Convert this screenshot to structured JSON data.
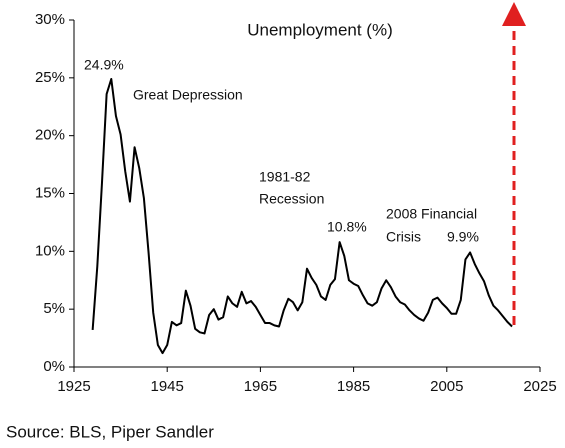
{
  "chart_data": {
    "type": "line",
    "title": "Unemployment (%)",
    "x": [
      1929,
      1930,
      1931,
      1932,
      1933,
      1934,
      1935,
      1936,
      1937,
      1938,
      1939,
      1940,
      1941,
      1942,
      1943,
      1944,
      1945,
      1946,
      1947,
      1948,
      1949,
      1950,
      1951,
      1952,
      1953,
      1954,
      1955,
      1956,
      1957,
      1958,
      1959,
      1960,
      1961,
      1962,
      1963,
      1964,
      1965,
      1966,
      1967,
      1968,
      1969,
      1970,
      1971,
      1972,
      1973,
      1974,
      1975,
      1976,
      1977,
      1978,
      1979,
      1980,
      1981,
      1982,
      1983,
      1984,
      1985,
      1986,
      1987,
      1988,
      1989,
      1990,
      1991,
      1992,
      1993,
      1994,
      1995,
      1996,
      1997,
      1998,
      1999,
      2000,
      2001,
      2002,
      2003,
      2004,
      2005,
      2006,
      2007,
      2008,
      2009,
      2010,
      2011,
      2012,
      2013,
      2014,
      2015,
      2016,
      2017,
      2018,
      2019
    ],
    "values": [
      3.2,
      8.7,
      15.9,
      23.6,
      24.9,
      21.7,
      20.1,
      16.9,
      14.3,
      19.0,
      17.2,
      14.6,
      9.9,
      4.7,
      1.9,
      1.2,
      1.9,
      3.9,
      3.6,
      3.8,
      6.6,
      5.3,
      3.3,
      3.0,
      2.9,
      4.5,
      5.0,
      4.1,
      4.3,
      6.1,
      5.5,
      5.2,
      6.5,
      5.5,
      5.7,
      5.2,
      4.5,
      3.8,
      3.8,
      3.6,
      3.5,
      4.9,
      5.9,
      5.6,
      4.9,
      5.6,
      8.5,
      7.7,
      7.1,
      6.1,
      5.8,
      7.1,
      7.6,
      10.8,
      9.6,
      7.5,
      7.2,
      7.0,
      6.2,
      5.5,
      5.3,
      5.6,
      6.8,
      7.5,
      6.9,
      6.1,
      5.6,
      5.4,
      4.9,
      4.5,
      4.2,
      4.0,
      4.7,
      5.8,
      6.0,
      5.5,
      5.1,
      4.6,
      4.6,
      5.8,
      9.3,
      9.9,
      8.9,
      8.1,
      7.4,
      6.2,
      5.3,
      4.9,
      4.4,
      3.9,
      3.5
    ],
    "color": "#000000",
    "xlim": [
      1925,
      2025
    ],
    "xticks": [
      1925,
      1945,
      1965,
      1985,
      2005,
      2025
    ],
    "ylim": [
      0,
      30
    ],
    "yticks": [
      {
        "value": 0,
        "label": "0%"
      },
      {
        "value": 5,
        "label": "5%"
      },
      {
        "value": 10,
        "label": "10%"
      },
      {
        "value": 15,
        "label": "15%"
      },
      {
        "value": 20,
        "label": "20%"
      },
      {
        "value": 25,
        "label": "25%"
      },
      {
        "value": 30,
        "label": "30%"
      }
    ],
    "grid": false,
    "annotation_color": "#d9342b",
    "annotations": [
      "24.9%",
      "Great Depression",
      "1981-82",
      "Recession",
      "10.8%",
      "2008 Financial",
      "Crisis",
      "9.9%"
    ],
    "source": "Source: BLS, Piper Sandler"
  }
}
